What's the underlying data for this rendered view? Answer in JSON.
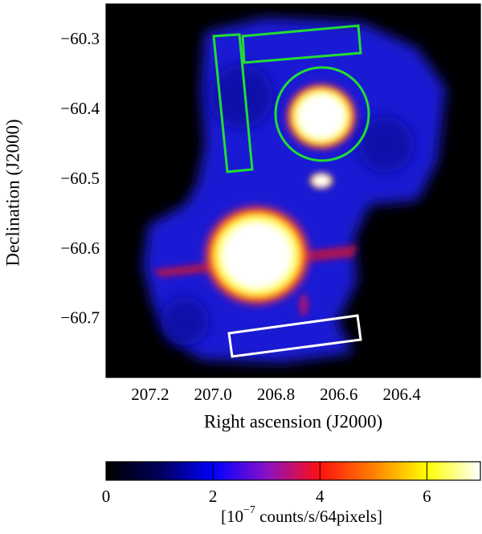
{
  "chart_data": {
    "type": "image",
    "x_label": "Right ascension (J2000)",
    "y_label": "Declination (J2000)",
    "xlim": [
      207.34,
      206.15
    ],
    "ylim": [
      -60.783,
      -60.248
    ],
    "xticks": [
      207.2,
      {
        "value": 207.0,
        "label": "207.0"
      },
      206.8,
      206.6,
      206.4
    ],
    "yticks": [
      {
        "value": -60.3,
        "label": "−60.3"
      },
      {
        "value": -60.4,
        "label": "−60.4"
      },
      {
        "value": -60.5,
        "label": "−60.5"
      },
      {
        "value": -60.6,
        "label": "−60.6"
      },
      {
        "value": -60.7,
        "label": "−60.7"
      }
    ],
    "colorbar": {
      "lim": [
        0,
        7
      ],
      "ticks": [
        0,
        2,
        4,
        6
      ],
      "label_prefix": "[10",
      "label_exponent": "−7",
      "label_suffix": " counts/s/64pixels]",
      "colormap": [
        "#000000",
        "#00005a",
        "#0000ff",
        "#8a10c8",
        "#ff1010",
        "#ff8000",
        "#ffff00",
        "#ffffff"
      ]
    }
  }
}
